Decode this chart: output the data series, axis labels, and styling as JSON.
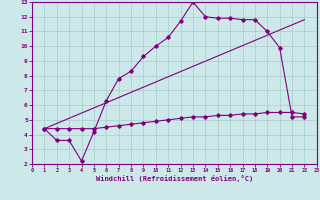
{
  "xlabel": "Windchill (Refroidissement éolien,°C)",
  "ylabel": "",
  "xlim": [
    0,
    23
  ],
  "ylim": [
    2,
    13
  ],
  "xticks": [
    0,
    1,
    2,
    3,
    4,
    5,
    6,
    7,
    8,
    9,
    10,
    11,
    12,
    13,
    14,
    15,
    16,
    17,
    18,
    19,
    20,
    21,
    22,
    23
  ],
  "yticks": [
    2,
    3,
    4,
    5,
    6,
    7,
    8,
    9,
    10,
    11,
    12,
    13
  ],
  "bg_color": "#cce8e8",
  "line_color": "#800080",
  "grid_color": "#aacccc",
  "line1_x": [
    1,
    2,
    3,
    4,
    5,
    6,
    7,
    8,
    9,
    10,
    11,
    12,
    13,
    14,
    15,
    16,
    17,
    18,
    19,
    20,
    21,
    22
  ],
  "line1_y": [
    4.4,
    3.6,
    3.6,
    2.2,
    4.2,
    6.3,
    7.8,
    8.3,
    9.3,
    10.0,
    10.6,
    11.7,
    13.0,
    12.0,
    11.9,
    11.9,
    11.8,
    11.8,
    11.0,
    9.9,
    5.2,
    5.2
  ],
  "line2_x": [
    1,
    22
  ],
  "line2_y": [
    4.4,
    11.8
  ],
  "line3_x": [
    1,
    2,
    3,
    4,
    5,
    6,
    7,
    8,
    9,
    10,
    11,
    12,
    13,
    14,
    15,
    16,
    17,
    18,
    19,
    20,
    21,
    22
  ],
  "line3_y": [
    4.4,
    4.4,
    4.4,
    4.4,
    4.4,
    4.5,
    4.6,
    4.7,
    4.8,
    4.9,
    5.0,
    5.1,
    5.2,
    5.2,
    5.3,
    5.3,
    5.4,
    5.4,
    5.5,
    5.5,
    5.5,
    5.4
  ]
}
